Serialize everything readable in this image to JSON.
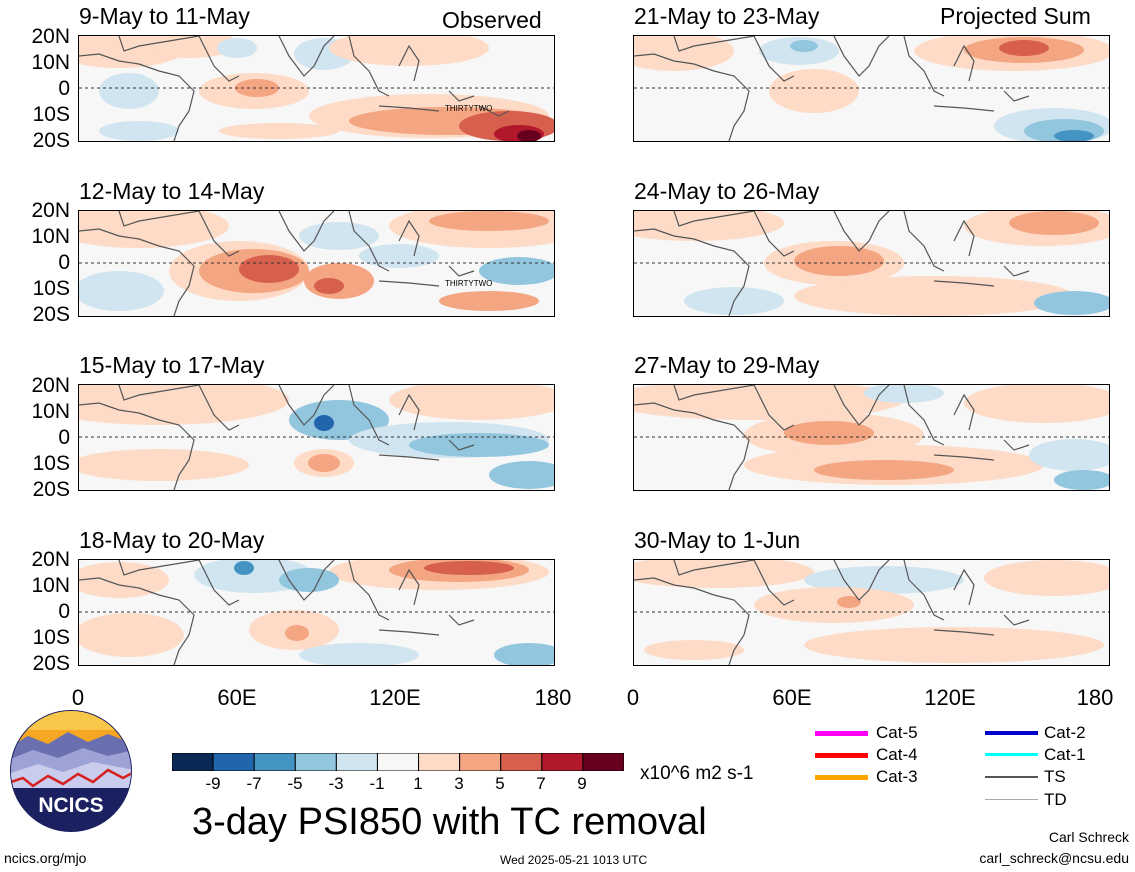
{
  "header": {
    "observed_label": "Observed",
    "projected_label": "Projected Sum"
  },
  "panels": [
    {
      "title": "9-May to 11-May",
      "storm_label": "THIRTYTWO"
    },
    {
      "title": "12-May to 14-May",
      "storm_label": "THIRTYTWO"
    },
    {
      "title": "15-May to 17-May"
    },
    {
      "title": "18-May to 20-May"
    },
    {
      "title": "21-May to 23-May"
    },
    {
      "title": "24-May to 26-May"
    },
    {
      "title": "27-May to 29-May"
    },
    {
      "title": "30-May to 1-Jun"
    }
  ],
  "lat_labels": [
    "20N",
    "10N",
    "0",
    "10S",
    "20S"
  ],
  "lon_labels": [
    "0",
    "60E",
    "120E",
    "180"
  ],
  "colorbar": {
    "ticks": [
      "-9",
      "-7",
      "-5",
      "-3",
      "-1",
      "1",
      "3",
      "5",
      "7",
      "9"
    ],
    "colors": [
      "#0a2a55",
      "#2166ac",
      "#4393c3",
      "#92c5de",
      "#d1e5f0",
      "#f7f7f7",
      "#fddbc7",
      "#f4a582",
      "#d6604d",
      "#b2182b",
      "#67001f"
    ],
    "units": "x10^6 m2 s-1"
  },
  "title": "3-day PSI850 with TC removal",
  "legend": [
    {
      "label": "Cat-5",
      "color": "#ff00ff"
    },
    {
      "label": "Cat-4",
      "color": "#ff0000"
    },
    {
      "label": "Cat-3",
      "color": "#ffa500"
    },
    {
      "label": "Cat-2",
      "color": "#0000cc"
    },
    {
      "label": "Cat-1",
      "color": "#00ffff"
    },
    {
      "label": "TS",
      "color": "#555555"
    },
    {
      "label": "TD",
      "color": "#aaaaaa"
    }
  ],
  "logo": {
    "text": "NCICS"
  },
  "footer": {
    "left": "ncics.org/mjo",
    "center": "Wed 2025-05-21 1013 UTC",
    "author": "Carl Schreck",
    "email": "carl_schreck@ncsu.edu"
  }
}
